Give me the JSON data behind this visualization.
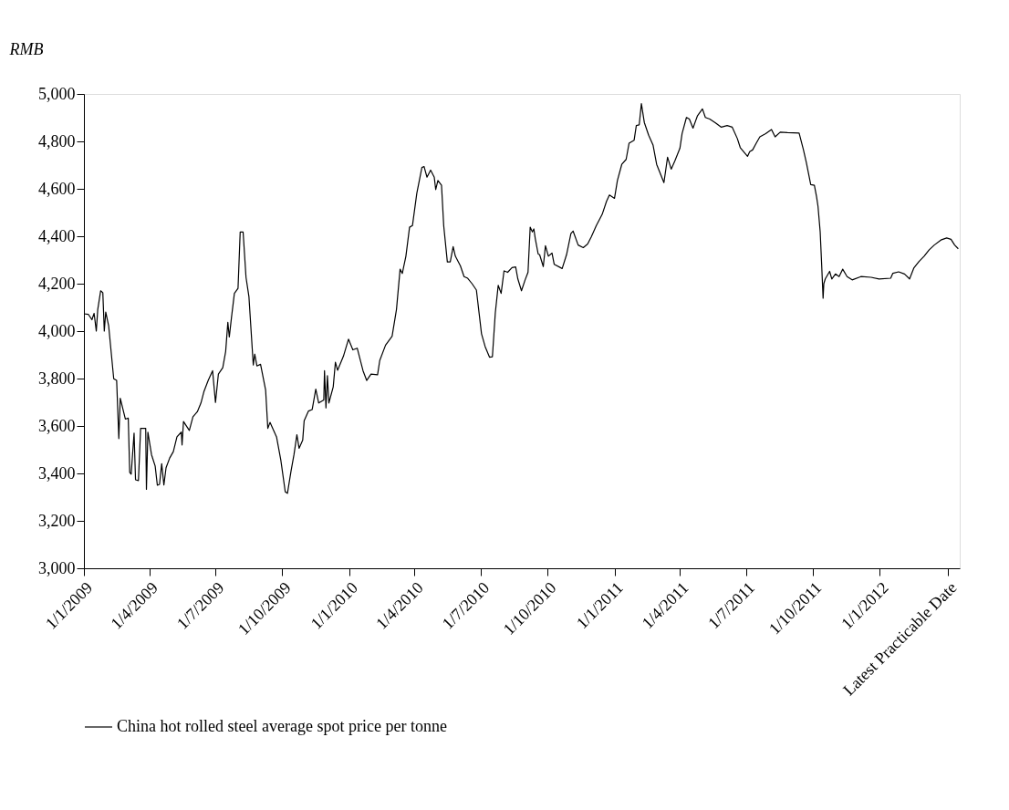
{
  "chart_data": {
    "type": "line",
    "ylabel": "RMB",
    "x": [
      "2009-01-01",
      "2009-01-07",
      "2009-01-12",
      "2009-01-15",
      "2009-01-18",
      "2009-01-20",
      "2009-01-24",
      "2009-01-27",
      "2009-01-29",
      "2009-01-31",
      "2009-02-04",
      "2009-02-11",
      "2009-02-15",
      "2009-02-18",
      "2009-02-20",
      "2009-02-27",
      "2009-03-03",
      "2009-03-05",
      "2009-03-07",
      "2009-03-11",
      "2009-03-13",
      "2009-03-17",
      "2009-03-20",
      "2009-03-27",
      "2009-03-28",
      "2009-03-30",
      "2009-04-04",
      "2009-04-09",
      "2009-04-12",
      "2009-04-15",
      "2009-04-18",
      "2009-04-21",
      "2009-04-24",
      "2009-04-29",
      "2009-05-04",
      "2009-05-09",
      "2009-05-15",
      "2009-05-16",
      "2009-05-18",
      "2009-05-26",
      "2009-05-31",
      "2009-06-06",
      "2009-06-11",
      "2009-06-15",
      "2009-06-21",
      "2009-06-27",
      "2009-07-01",
      "2009-07-05",
      "2009-07-11",
      "2009-07-15",
      "2009-07-18",
      "2009-07-20",
      "2009-07-23",
      "2009-07-27",
      "2009-08-01",
      "2009-08-04",
      "2009-08-08",
      "2009-08-12",
      "2009-08-16",
      "2009-08-22",
      "2009-08-24",
      "2009-08-27",
      "2009-09-01",
      "2009-09-08",
      "2009-09-11",
      "2009-09-14",
      "2009-09-23",
      "2009-09-29",
      "2009-10-05",
      "2009-10-08",
      "2009-10-13",
      "2009-10-17",
      "2009-10-21",
      "2009-10-24",
      "2009-10-29",
      "2009-10-31",
      "2009-11-06",
      "2009-11-11",
      "2009-11-16",
      "2009-11-20",
      "2009-11-27",
      "2009-11-28",
      "2009-11-30",
      "2009-12-02",
      "2009-12-04",
      "2009-12-10",
      "2009-12-13",
      "2009-12-16",
      "2009-12-24",
      "2009-12-31",
      "2010-01-06",
      "2010-01-12",
      "2010-01-20",
      "2010-01-25",
      "2010-01-31",
      "2010-02-09",
      "2010-02-12",
      "2010-02-20",
      "2010-03-01",
      "2010-03-07",
      "2010-03-12",
      "2010-03-15",
      "2010-03-20",
      "2010-03-25",
      "2010-03-29",
      "2010-04-04",
      "2010-04-11",
      "2010-04-14",
      "2010-04-18",
      "2010-04-23",
      "2010-04-28",
      "2010-04-30",
      "2010-05-03",
      "2010-05-08",
      "2010-05-11",
      "2010-05-16",
      "2010-05-20",
      "2010-05-24",
      "2010-05-27",
      "2010-06-03",
      "2010-06-08",
      "2010-06-13",
      "2010-06-19",
      "2010-06-25",
      "2010-07-02",
      "2010-07-07",
      "2010-07-13",
      "2010-07-17",
      "2010-07-21",
      "2010-07-25",
      "2010-07-29",
      "2010-08-02",
      "2010-08-07",
      "2010-08-13",
      "2010-08-18",
      "2010-08-21",
      "2010-08-26",
      "2010-08-31",
      "2010-09-04",
      "2010-09-07",
      "2010-09-10",
      "2010-09-12",
      "2010-09-14",
      "2010-09-18",
      "2010-09-20",
      "2010-09-25",
      "2010-09-28",
      "2010-10-02",
      "2010-10-07",
      "2010-10-10",
      "2010-10-21",
      "2010-10-27",
      "2010-11-02",
      "2010-11-05",
      "2010-11-12",
      "2010-11-19",
      "2010-11-25",
      "2010-11-30",
      "2010-12-07",
      "2010-12-15",
      "2010-12-21",
      "2010-12-25",
      "2011-01-01",
      "2011-01-05",
      "2011-01-11",
      "2011-01-17",
      "2011-01-21",
      "2011-01-28",
      "2011-01-31",
      "2011-02-04",
      "2011-02-07",
      "2011-02-11",
      "2011-02-17",
      "2011-02-23",
      "2011-02-28",
      "2011-03-07",
      "2011-03-10",
      "2011-03-15",
      "2011-03-20",
      "2011-03-25",
      "2011-04-01",
      "2011-04-04",
      "2011-04-10",
      "2011-04-14",
      "2011-04-19",
      "2011-04-25",
      "2011-05-02",
      "2011-05-06",
      "2011-05-12",
      "2011-05-20",
      "2011-05-28",
      "2011-06-05",
      "2011-06-12",
      "2011-06-19",
      "2011-06-23",
      "2011-07-03",
      "2011-07-06",
      "2011-07-10",
      "2011-07-15",
      "2011-07-20",
      "2011-07-28",
      "2011-08-05",
      "2011-08-10",
      "2011-08-17",
      "2011-08-27",
      "2011-09-12",
      "2011-09-18",
      "2011-09-22",
      "2011-09-28",
      "2011-10-03",
      "2011-10-06",
      "2011-10-08",
      "2011-10-11",
      "2011-10-13",
      "2011-10-15",
      "2011-10-16",
      "2011-10-18",
      "2011-10-24",
      "2011-10-27",
      "2011-11-01",
      "2011-11-06",
      "2011-11-11",
      "2011-11-17",
      "2011-11-24",
      "2011-12-06",
      "2011-12-20",
      "2011-12-31",
      "2012-01-16",
      "2012-01-19",
      "2012-01-27",
      "2012-02-04",
      "2012-02-11",
      "2012-02-17",
      "2012-02-24",
      "2012-03-02",
      "2012-03-09",
      "2012-03-16",
      "2012-03-25",
      "2012-04-02",
      "2012-04-08",
      "2012-04-13",
      "2012-04-18"
    ],
    "series": [
      {
        "name": "China hot rolled steel average spot price per tonne",
        "color": "#000000",
        "values": [
          4073,
          4071,
          4048,
          4075,
          4000,
          4091,
          4170,
          4162,
          4000,
          4080,
          4023,
          3799,
          3792,
          3547,
          3717,
          3629,
          3633,
          3404,
          3397,
          3570,
          3373,
          3370,
          3590,
          3590,
          3333,
          3574,
          3479,
          3431,
          3350,
          3354,
          3441,
          3351,
          3424,
          3465,
          3492,
          3554,
          3574,
          3520,
          3619,
          3581,
          3639,
          3660,
          3697,
          3744,
          3792,
          3833,
          3699,
          3819,
          3846,
          3914,
          4037,
          3975,
          4057,
          4159,
          4180,
          4418,
          4418,
          4227,
          4146,
          3857,
          3903,
          3853,
          3860,
          3751,
          3590,
          3615,
          3554,
          3454,
          3322,
          3316,
          3411,
          3479,
          3563,
          3506,
          3540,
          3622,
          3663,
          3669,
          3755,
          3697,
          3710,
          3833,
          3676,
          3812,
          3697,
          3765,
          3869,
          3835,
          3894,
          3966,
          3921,
          3928,
          3833,
          3792,
          3819,
          3816,
          3876,
          3941,
          3978,
          4091,
          4261,
          4243,
          4316,
          4438,
          4445,
          4581,
          4690,
          4694,
          4649,
          4679,
          4649,
          4597,
          4635,
          4615,
          4445,
          4292,
          4292,
          4356,
          4316,
          4275,
          4230,
          4223,
          4200,
          4173,
          3989,
          3935,
          3890,
          3892,
          4077,
          4193,
          4159,
          4254,
          4248,
          4268,
          4271,
          4220,
          4170,
          4216,
          4248,
          4438,
          4418,
          4431,
          4390,
          4325,
          4322,
          4272,
          4360,
          4316,
          4329,
          4282,
          4264,
          4322,
          4411,
          4422,
          4363,
          4352,
          4367,
          4397,
          4445,
          4492,
          4547,
          4574,
          4560,
          4635,
          4703,
          4724,
          4792,
          4805,
          4867,
          4870,
          4959,
          4880,
          4826,
          4785,
          4703,
          4649,
          4626,
          4733,
          4683,
          4717,
          4771,
          4833,
          4901,
          4894,
          4856,
          4907,
          4937,
          4901,
          4894,
          4878,
          4860,
          4867,
          4860,
          4812,
          4774,
          4737,
          4757,
          4764,
          4792,
          4819,
          4833,
          4850,
          4819,
          4839,
          4837,
          4835,
          4764,
          4710,
          4618,
          4615,
          4567,
          4526,
          4418,
          4282,
          4139,
          4200,
          4220,
          4252,
          4220,
          4241,
          4230,
          4261,
          4230,
          4216,
          4230,
          4227,
          4220,
          4223,
          4244,
          4250,
          4241,
          4220,
          4267,
          4294,
          4316,
          4343,
          4363,
          4384,
          4393,
          4387,
          4363,
          4347
        ]
      }
    ],
    "xlim": [
      "2009-01-01",
      "2012-04-20"
    ],
    "xticks": [
      {
        "value": "2009-01-01",
        "label": "1/1/2009"
      },
      {
        "value": "2009-04-01",
        "label": "1/4/2009"
      },
      {
        "value": "2009-07-01",
        "label": "1/7/2009"
      },
      {
        "value": "2009-10-01",
        "label": "1/10/2009"
      },
      {
        "value": "2010-01-01",
        "label": "1/1/2010"
      },
      {
        "value": "2010-04-01",
        "label": "1/4/2010"
      },
      {
        "value": "2010-07-01",
        "label": "1/7/2010"
      },
      {
        "value": "2010-10-01",
        "label": "1/10/2010"
      },
      {
        "value": "2011-01-01",
        "label": "1/1/2011"
      },
      {
        "value": "2011-04-01",
        "label": "1/4/2011"
      },
      {
        "value": "2011-07-01",
        "label": "1/7/2011"
      },
      {
        "value": "2011-10-01",
        "label": "1/10/2011"
      },
      {
        "value": "2012-01-01",
        "label": "1/1/2012"
      },
      {
        "value": "2012-04-04",
        "label": "Latest Practicable Date"
      }
    ],
    "ylim": [
      3000,
      5000
    ],
    "yticks": [
      {
        "value": 3000,
        "label": "3,000"
      },
      {
        "value": 3200,
        "label": "3,200"
      },
      {
        "value": 3400,
        "label": "3,400"
      },
      {
        "value": 3600,
        "label": "3,600"
      },
      {
        "value": 3800,
        "label": "3,800"
      },
      {
        "value": 4000,
        "label": "4,000"
      },
      {
        "value": 4200,
        "label": "4,200"
      },
      {
        "value": 4400,
        "label": "4,400"
      },
      {
        "value": 4600,
        "label": "4,600"
      },
      {
        "value": 4800,
        "label": "4,800"
      },
      {
        "value": 5000,
        "label": "5,000"
      }
    ],
    "grid": false,
    "legend": "bottom",
    "marker": "none",
    "line_style": "solid"
  }
}
